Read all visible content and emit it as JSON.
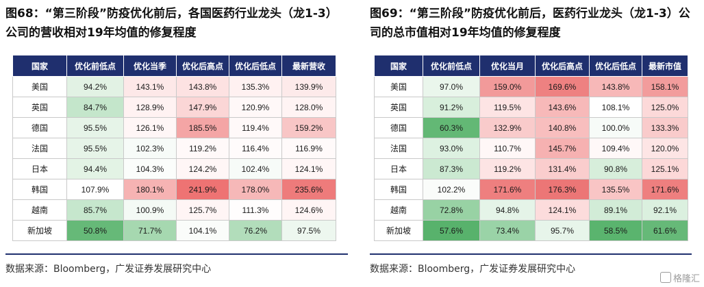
{
  "left": {
    "title": "图68：“第三阶段”防疫优化前后，各国医药行业龙头（龙1-3）公司的营收相对19年均值的修复程度",
    "headers": [
      "国家",
      "优化前低点",
      "优化当季",
      "优化后高点",
      "优化后低点",
      "最新营收"
    ],
    "rows": [
      {
        "country": "美国",
        "values": [
          "94.2%",
          "143.1%",
          "143.8%",
          "135.3%",
          "139.9%"
        ],
        "colors": [
          "#e2f2e4",
          "#fde8e8",
          "#fde2e2",
          "#fff1f1",
          "#fdeaea"
        ]
      },
      {
        "country": "英国",
        "values": [
          "84.7%",
          "128.9%",
          "147.9%",
          "120.9%",
          "128.0%"
        ],
        "colors": [
          "#c4e6cb",
          "#fff2f2",
          "#fbd6d6",
          "#fff8f8",
          "#fff4f4"
        ]
      },
      {
        "country": "德国",
        "values": [
          "95.5%",
          "126.1%",
          "185.5%",
          "119.4%",
          "159.2%"
        ],
        "colors": [
          "#e6f4e8",
          "#fff6f6",
          "#f4a5a5",
          "#fff9f9",
          "#f8c6c6"
        ]
      },
      {
        "country": "法国",
        "values": [
          "95.5%",
          "102.3%",
          "119.2%",
          "116.4%",
          "116.9%"
        ],
        "colors": [
          "#e6f4e8",
          "#f7fbf8",
          "#fff9f9",
          "#fffbfb",
          "#fffafa"
        ]
      },
      {
        "country": "日本",
        "values": [
          "94.4%",
          "104.3%",
          "124.2%",
          "102.4%",
          "124.1%"
        ],
        "colors": [
          "#e3f3e5",
          "#fbfdfb",
          "#fff6f6",
          "#f7fbf8",
          "#fff6f6"
        ]
      },
      {
        "country": "韩国",
        "values": [
          "107.9%",
          "180.1%",
          "241.9%",
          "178.0%",
          "235.6%"
        ],
        "colors": [
          "#ffffff",
          "#f6b3b3",
          "#ee7373",
          "#f6b8b8",
          "#ee7b7b"
        ]
      },
      {
        "country": "越南",
        "values": [
          "85.7%",
          "100.9%",
          "125.7%",
          "111.3%",
          "124.6%"
        ],
        "colors": [
          "#c6e7cd",
          "#f4faf5",
          "#fff5f5",
          "#fffdfd",
          "#fff5f5"
        ]
      },
      {
        "country": "新加坡",
        "values": [
          "50.8%",
          "71.7%",
          "104.1%",
          "76.2%",
          "97.5%"
        ],
        "colors": [
          "#66b978",
          "#a6d8b0",
          "#fafcfa",
          "#b2ddbb",
          "#edf7ef"
        ]
      }
    ],
    "source": "数据来源：Bloomberg，广发证券发展研究中心"
  },
  "right": {
    "title": "图69：“第三阶段”防疫优化前后，医药行业龙头（龙1-3）公司的总市值相对19年均值的修复程度",
    "headers": [
      "国家",
      "优化前低点",
      "优化当月",
      "优化后高点",
      "优化后低点",
      "最新市值"
    ],
    "rows": [
      {
        "country": "美国",
        "values": [
          "97.0%",
          "159.0%",
          "169.6%",
          "143.8%",
          "158.1%"
        ],
        "colors": [
          "#eaf6ec",
          "#f29a9a",
          "#ee8181",
          "#f7b8b8",
          "#f29c9c"
        ]
      },
      {
        "country": "英国",
        "values": [
          "91.2%",
          "119.5%",
          "143.6%",
          "108.1%",
          "125.0%"
        ],
        "colors": [
          "#d8efdc",
          "#fde4e4",
          "#f7b9b9",
          "#ffffff",
          "#fcd9d9"
        ]
      },
      {
        "country": "德国",
        "values": [
          "60.3%",
          "132.9%",
          "140.8%",
          "100.0%",
          "133.3%"
        ],
        "colors": [
          "#63b875",
          "#f9cbcb",
          "#f8bebe",
          "#f7fbf8",
          "#f9cbcb"
        ]
      },
      {
        "country": "法国",
        "values": [
          "93.0%",
          "110.7%",
          "145.7%",
          "109.4%",
          "120.0%"
        ],
        "colors": [
          "#ddf1e1",
          "#fff7f7",
          "#f6b1b1",
          "#fff8f8",
          "#fde5e5"
        ]
      },
      {
        "country": "日本",
        "values": [
          "87.3%",
          "119.2%",
          "131.4%",
          "90.8%",
          "125.1%"
        ],
        "colors": [
          "#cbe9d1",
          "#fde4e4",
          "#facdcd",
          "#d7eedb",
          "#fcd8d8"
        ]
      },
      {
        "country": "韩国",
        "values": [
          "102.2%",
          "171.6%",
          "176.3%",
          "135.5%",
          "171.6%"
        ],
        "colors": [
          "#fafcfa",
          "#ee7f7f",
          "#ec7676",
          "#f9c5c5",
          "#ee7f7f"
        ]
      },
      {
        "country": "越南",
        "values": [
          "72.8%",
          "94.8%",
          "124.1%",
          "89.1%",
          "92.1%"
        ],
        "colors": [
          "#98d2a4",
          "#e5f4e8",
          "#fcdcdc",
          "#d2ecd7",
          "#dbf0df"
        ]
      },
      {
        "country": "新加坡",
        "values": [
          "57.6%",
          "73.4%",
          "95.7%",
          "58.5%",
          "61.6%"
        ],
        "colors": [
          "#58b26c",
          "#9ad3a7",
          "#e7f5ea",
          "#5ab46e",
          "#66b978"
        ]
      }
    ],
    "source": "数据来源：Bloomberg，广发证券发展研究中心"
  },
  "watermark": "格隆汇"
}
